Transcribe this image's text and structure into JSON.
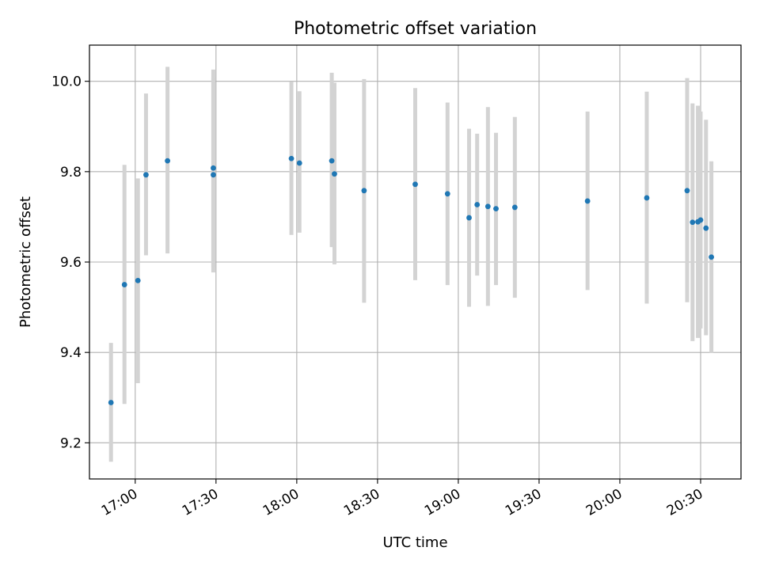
{
  "chart_data": {
    "type": "scatter",
    "title": "Photometric offset variation",
    "xlabel": "UTC time",
    "ylabel": "Photometric offset",
    "xlim": [
      "16:43",
      "20:45"
    ],
    "ylim": [
      9.12,
      10.08
    ],
    "x_ticks": [
      "17:00",
      "17:30",
      "18:00",
      "18:30",
      "19:00",
      "19:30",
      "20:00",
      "20:30"
    ],
    "y_ticks": [
      "9.2",
      "9.4",
      "9.6",
      "9.8",
      "10.0"
    ],
    "grid": true,
    "colors": {
      "points": "#1f77b4",
      "error_bars": "#d3d3d3",
      "grid": "#b0b0b0"
    },
    "series": [
      {
        "points": [
          {
            "x": "16:51",
            "y": 9.289,
            "y_low": 9.158,
            "y_high": 9.421
          },
          {
            "x": "16:56",
            "y": 9.55,
            "y_low": 9.286,
            "y_high": 9.815
          },
          {
            "x": "16:61",
            "y": 9.559,
            "y_low": 9.332,
            "y_high": 9.785
          },
          {
            "x": "17:04",
            "y": 9.793,
            "y_low": 9.615,
            "y_high": 9.973
          },
          {
            "x": "17:12",
            "y": 9.824,
            "y_low": 9.619,
            "y_high": 10.032
          },
          {
            "x": "17:29",
            "y": 9.793,
            "y_low": 9.577,
            "y_high": 10.008
          },
          {
            "x": "17:29",
            "y": 9.808,
            "y_low": 9.588,
            "y_high": 10.026
          },
          {
            "x": "17:58",
            "y": 9.829,
            "y_low": 9.66,
            "y_high": 9.999
          },
          {
            "x": "18:01",
            "y": 9.819,
            "y_low": 9.665,
            "y_high": 9.978
          },
          {
            "x": "18:13",
            "y": 9.824,
            "y_low": 9.633,
            "y_high": 10.019
          },
          {
            "x": "18:14",
            "y": 9.795,
            "y_low": 9.595,
            "y_high": 9.997
          },
          {
            "x": "18:25",
            "y": 9.758,
            "y_low": 9.51,
            "y_high": 10.005
          },
          {
            "x": "18:44",
            "y": 9.772,
            "y_low": 9.56,
            "y_high": 9.985
          },
          {
            "x": "18:56",
            "y": 9.751,
            "y_low": 9.549,
            "y_high": 9.953
          },
          {
            "x": "19:04",
            "y": 9.698,
            "y_low": 9.501,
            "y_high": 9.895
          },
          {
            "x": "19:07",
            "y": 9.727,
            "y_low": 9.57,
            "y_high": 9.884
          },
          {
            "x": "19:11",
            "y": 9.723,
            "y_low": 9.503,
            "y_high": 9.943
          },
          {
            "x": "19:14",
            "y": 9.718,
            "y_low": 9.549,
            "y_high": 9.886
          },
          {
            "x": "19:21",
            "y": 9.721,
            "y_low": 9.521,
            "y_high": 9.921
          },
          {
            "x": "19:48",
            "y": 9.735,
            "y_low": 9.538,
            "y_high": 9.933
          },
          {
            "x": "20:10",
            "y": 9.742,
            "y_low": 9.508,
            "y_high": 9.977
          },
          {
            "x": "20:25",
            "y": 9.758,
            "y_low": 9.511,
            "y_high": 10.007
          },
          {
            "x": "20:27",
            "y": 9.688,
            "y_low": 9.425,
            "y_high": 9.951
          },
          {
            "x": "20:29",
            "y": 9.689,
            "y_low": 9.432,
            "y_high": 9.946
          },
          {
            "x": "20:30",
            "y": 9.693,
            "y_low": 9.453,
            "y_high": 9.933
          },
          {
            "x": "20:32",
            "y": 9.675,
            "y_low": 9.438,
            "y_high": 9.915
          },
          {
            "x": "20:34",
            "y": 9.611,
            "y_low": 9.399,
            "y_high": 9.823
          }
        ]
      }
    ]
  }
}
